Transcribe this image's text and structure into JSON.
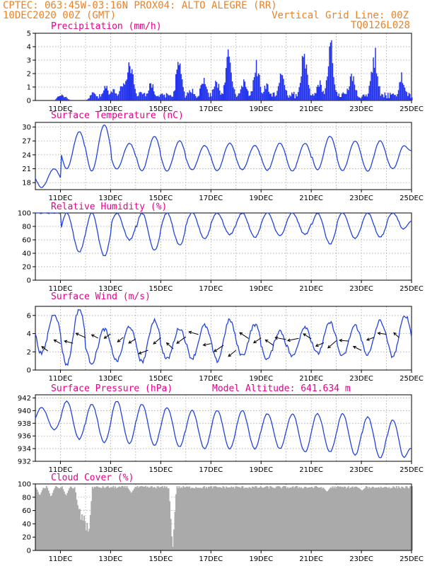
{
  "header": {
    "line1_left": "CPTEC:  063:45W-03:16N  PROX04: ALTO ALEGRE (RR)",
    "line2_left": "10DEC2020 00Z (GMT)",
    "line2_right": "Vertical Grid Line: 00Z",
    "line3_right": "TQ0126L028"
  },
  "colors": {
    "header": "#e8832a",
    "panel_title": "#e8008a",
    "line": "#2244dd",
    "bar": "#2233ee",
    "cloud": "#aaaaaa",
    "grid": "#999999"
  },
  "chart_data": [
    {
      "type": "bar",
      "title": "Precipitation (mm/h)",
      "ylim": [
        0,
        5
      ],
      "yticks": [
        0,
        1,
        2,
        3,
        4,
        5
      ],
      "x_ticks": [
        "11DEC",
        "13DEC",
        "15DEC",
        "17DEC",
        "19DEC",
        "21DEC",
        "23DEC",
        "25DEC"
      ],
      "x_start": "10DEC2020 00Z",
      "x_end": "25DEC2020 00Z",
      "grid": true,
      "series_peaks": [
        {
          "day": 1.0,
          "value": 0.5
        },
        {
          "day": 1.1,
          "value": 0.4
        },
        {
          "day": 2.3,
          "value": 0.7
        },
        {
          "day": 2.8,
          "value": 1.2
        },
        {
          "day": 3.1,
          "value": 1.0
        },
        {
          "day": 3.5,
          "value": 1.8
        },
        {
          "day": 3.75,
          "value": 3.8
        },
        {
          "day": 3.9,
          "value": 1.0
        },
        {
          "day": 4.6,
          "value": 1.5
        },
        {
          "day": 5.0,
          "value": 0.6
        },
        {
          "day": 5.7,
          "value": 3.0
        },
        {
          "day": 6.2,
          "value": 1.0
        },
        {
          "day": 6.7,
          "value": 2.0
        },
        {
          "day": 7.2,
          "value": 1.8
        },
        {
          "day": 7.7,
          "value": 4.0
        },
        {
          "day": 8.3,
          "value": 1.6
        },
        {
          "day": 8.8,
          "value": 3.2
        },
        {
          "day": 9.2,
          "value": 1.4
        },
        {
          "day": 9.8,
          "value": 2.6
        },
        {
          "day": 10.7,
          "value": 4.0
        },
        {
          "day": 11.3,
          "value": 1.6
        },
        {
          "day": 11.75,
          "value": 4.8
        },
        {
          "day": 12.6,
          "value": 2.6
        },
        {
          "day": 13.5,
          "value": 4.3
        },
        {
          "day": 14.6,
          "value": 2.4
        }
      ]
    },
    {
      "type": "line",
      "title": "Surface Temperature (nC)",
      "ylim": [
        16.5,
        31
      ],
      "yticks": [
        18,
        21,
        24,
        27,
        30
      ],
      "x_ticks": [
        "11DEC",
        "13DEC",
        "15DEC",
        "17DEC",
        "19DEC",
        "21DEC",
        "23DEC",
        "25DEC"
      ],
      "daily_max": [
        21,
        29,
        30.5,
        26.5,
        28,
        27,
        26,
        26.5,
        26,
        26.5,
        26.5,
        28,
        27,
        27,
        26.5
      ],
      "daily_min": [
        17,
        21,
        20.5,
        21,
        20.5,
        20.5,
        20.8,
        20.6,
        20.8,
        20.7,
        20.5,
        20.8,
        20.6,
        20.5,
        21
      ],
      "final_value": 25,
      "grid": true
    },
    {
      "type": "line",
      "title": "Relative Humidity (%)",
      "ylim": [
        0,
        100
      ],
      "yticks": [
        0,
        20,
        40,
        60,
        80,
        100
      ],
      "x_ticks": [
        "11DEC",
        "13DEC",
        "15DEC",
        "17DEC",
        "19DEC",
        "21DEC",
        "23DEC",
        "25DEC"
      ],
      "daily_max": [
        100,
        100,
        100,
        100,
        100,
        100,
        100,
        100,
        100,
        100,
        100,
        100,
        100,
        100,
        100
      ],
      "daily_min": [
        100,
        42,
        36,
        60,
        45,
        52,
        62,
        68,
        64,
        66,
        68,
        54,
        62,
        64,
        72
      ],
      "final_value": 88,
      "grid": true
    },
    {
      "type": "line",
      "title": "Surface Wind (m/s)",
      "ylim": [
        0,
        7
      ],
      "yticks": [
        0,
        2,
        4,
        6
      ],
      "x_ticks": [
        "11DEC",
        "13DEC",
        "15DEC",
        "17DEC",
        "19DEC",
        "21DEC",
        "23DEC",
        "25DEC"
      ],
      "daily_max": [
        6.2,
        6.7,
        4.5,
        4.8,
        5.5,
        4.6,
        4.9,
        5.5,
        5.0,
        4.3,
        4.8,
        5.2,
        4.9,
        5.4,
        6.0
      ],
      "daily_min": [
        1.8,
        0.6,
        0.8,
        1.0,
        0.9,
        1.2,
        1.3,
        1.0,
        1.6,
        1.2,
        1.5,
        1.8,
        1.5,
        1.7,
        1.5
      ],
      "arrows_note": "wind direction arrows at 12-hourly intervals",
      "grid": true
    },
    {
      "type": "line",
      "title": "Surface Pressure (hPa)",
      "subtitle": "Model Altitude: 641.634 m",
      "ylim": [
        932,
        942.5
      ],
      "yticks": [
        932,
        934,
        936,
        938,
        940,
        942
      ],
      "x_ticks": [
        "11DEC",
        "13DEC",
        "15DEC",
        "17DEC",
        "19DEC",
        "21DEC",
        "23DEC",
        "25DEC"
      ],
      "daily_max": [
        940.5,
        941.5,
        941,
        941.5,
        941,
        940.5,
        940,
        940,
        940,
        939.5,
        939.5,
        939.5,
        939.5,
        939,
        938.5
      ],
      "daily_min": [
        937,
        935.5,
        935,
        934.8,
        934.5,
        934.3,
        934,
        934,
        934,
        934,
        933.5,
        933.5,
        933,
        932.5,
        932
      ],
      "final_value": 934,
      "grid": true
    },
    {
      "type": "area",
      "title": "Cloud Cover (%)",
      "ylim": [
        0,
        100
      ],
      "yticks": [
        0,
        20,
        40,
        60,
        80,
        100
      ],
      "x_ticks": [
        "11DEC",
        "13DEC",
        "15DEC",
        "17DEC",
        "19DEC",
        "21DEC",
        "23DEC",
        "25DEC"
      ],
      "typical_value": 95,
      "dips": [
        {
          "day": 0.15,
          "value": 82
        },
        {
          "day": 0.6,
          "value": 80
        },
        {
          "day": 1.2,
          "value": 82
        },
        {
          "day": 1.7,
          "value": 60
        },
        {
          "day": 2.0,
          "value": 30
        },
        {
          "day": 2.1,
          "value": 20
        },
        {
          "day": 3.8,
          "value": 86
        },
        {
          "day": 5.45,
          "value": 0
        },
        {
          "day": 11.6,
          "value": 88
        },
        {
          "day": 13.0,
          "value": 90
        }
      ],
      "grid": true
    }
  ]
}
